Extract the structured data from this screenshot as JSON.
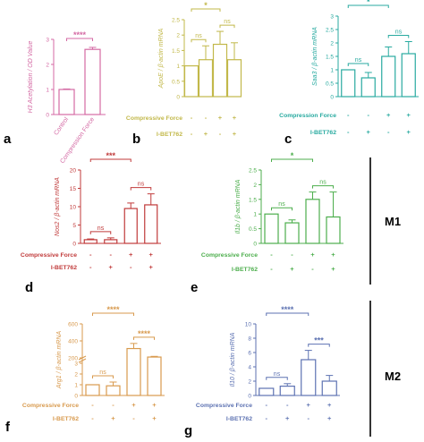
{
  "panel_letters": [
    "a",
    "b",
    "c",
    "d",
    "e",
    "f",
    "g"
  ],
  "group_labels": [
    "M1",
    "M2"
  ],
  "chart_data": [
    {
      "id": "a",
      "type": "bar",
      "color": "#d46aa4",
      "ylabel": "H3 Acetylation / OD Value",
      "categories": [
        "Control",
        "Compression Force"
      ],
      "values": [
        1.0,
        2.6
      ],
      "errors": [
        0.02,
        0.08
      ],
      "ylim": [
        0,
        3
      ],
      "yticks": [
        0,
        1,
        2,
        3
      ],
      "brackets": [
        {
          "from": 0,
          "to": 1,
          "label": "****"
        }
      ],
      "row_labels": [],
      "row_values": []
    },
    {
      "id": "b",
      "type": "bar",
      "color": "#c2b84a",
      "ylabel": "ApoE / β-actin mRNA",
      "categories": [
        "",
        "",
        "",
        ""
      ],
      "values": [
        1.0,
        1.2,
        1.7,
        1.2
      ],
      "errors": [
        0.0,
        0.45,
        0.42,
        0.55
      ],
      "ylim": [
        0,
        2.5
      ],
      "yticks": [
        0.0,
        0.5,
        1.0,
        1.5,
        2.0,
        2.5
      ],
      "brackets": [
        {
          "from": 0,
          "to": 1,
          "label": "ns"
        },
        {
          "from": 2,
          "to": 3,
          "label": "ns"
        },
        {
          "from": 0,
          "to": 2,
          "label": "*"
        }
      ],
      "row_labels": [
        "Compressive Force",
        "I-BET762"
      ],
      "row_values": [
        [
          "-",
          "-",
          "+",
          "+"
        ],
        [
          "-",
          "+",
          "-",
          "+"
        ]
      ]
    },
    {
      "id": "c",
      "type": "bar",
      "color": "#28aaa0",
      "ylabel": "Saa3 / β-actin mRNA",
      "categories": [
        "",
        "",
        "",
        ""
      ],
      "values": [
        1.0,
        0.7,
        1.5,
        1.6
      ],
      "errors": [
        0.0,
        0.2,
        0.35,
        0.45
      ],
      "ylim": [
        0,
        3
      ],
      "yticks": [
        0.0,
        0.5,
        1.0,
        1.5,
        2.0,
        2.5,
        3.0
      ],
      "brackets": [
        {
          "from": 0,
          "to": 1,
          "label": "ns"
        },
        {
          "from": 2,
          "to": 3,
          "label": "ns"
        },
        {
          "from": 0,
          "to": 2,
          "label": "*"
        }
      ],
      "row_labels": [
        "Compression Force",
        "I-BET762"
      ],
      "row_values": [
        [
          "-",
          "-",
          "+",
          "+"
        ],
        [
          "-",
          "+",
          "-",
          "+"
        ]
      ]
    },
    {
      "id": "d",
      "type": "bar",
      "color": "#c03a3a",
      "ylabel": "Nos2 / β-actin mRNA",
      "categories": [
        "",
        "",
        "",
        ""
      ],
      "values": [
        1.0,
        1.0,
        9.5,
        10.5
      ],
      "errors": [
        0.2,
        0.5,
        1.5,
        3.0
      ],
      "ylim": [
        0,
        20
      ],
      "yticks": [
        0,
        5,
        10,
        15,
        20
      ],
      "brackets": [
        {
          "from": 0,
          "to": 1,
          "label": "ns"
        },
        {
          "from": 2,
          "to": 3,
          "label": "ns"
        },
        {
          "from": 0,
          "to": 2,
          "label": "***"
        }
      ],
      "row_labels": [
        "Compressive Force",
        "I-BET762"
      ],
      "row_values": [
        [
          "-",
          "-",
          "+",
          "+"
        ],
        [
          "-",
          "+",
          "-",
          "+"
        ]
      ]
    },
    {
      "id": "e",
      "type": "bar",
      "color": "#4cae4c",
      "ylabel": "Il1b / β-actin mRNA",
      "categories": [
        "",
        "",
        "",
        ""
      ],
      "values": [
        1.0,
        0.7,
        1.5,
        0.9
      ],
      "errors": [
        0.0,
        0.1,
        0.25,
        0.85
      ],
      "ylim": [
        0,
        2.5
      ],
      "yticks": [
        0.0,
        0.5,
        1.0,
        1.5,
        2.0,
        2.5
      ],
      "brackets": [
        {
          "from": 0,
          "to": 1,
          "label": "ns"
        },
        {
          "from": 2,
          "to": 3,
          "label": "ns"
        },
        {
          "from": 0,
          "to": 2,
          "label": "*"
        }
      ],
      "row_labels": [
        "Compressive Force",
        "I-BET762"
      ],
      "row_values": [
        [
          "-",
          "-",
          "+",
          "+"
        ],
        [
          "-",
          "+",
          "-",
          "+"
        ]
      ]
    },
    {
      "id": "f",
      "type": "bar",
      "color": "#d89a4e",
      "ylabel": "Arg1 / β-actin mRNA",
      "categories": [
        "",
        "",
        "",
        ""
      ],
      "values": [
        1.0,
        0.9,
        310,
        210
      ],
      "errors": [
        0.0,
        0.35,
        60,
        8
      ],
      "ylim": [
        0,
        600
      ],
      "yticks": [
        0,
        1,
        2,
        3,
        200,
        400,
        600
      ],
      "broken_axis": {
        "lower_max": 3,
        "upper_min": 200
      },
      "brackets": [
        {
          "from": 0,
          "to": 1,
          "label": "ns"
        },
        {
          "from": 2,
          "to": 3,
          "label": "****"
        },
        {
          "from": 0,
          "to": 2,
          "label": "****"
        }
      ],
      "row_labels": [
        "Compressive Force",
        "I-BET762"
      ],
      "row_values": [
        [
          "-",
          "-",
          "+",
          "+"
        ],
        [
          "-",
          "+",
          "-",
          "+"
        ]
      ]
    },
    {
      "id": "g",
      "type": "bar",
      "color": "#5d72b2",
      "ylabel": "Il10 / β-actin mRNA",
      "categories": [
        "",
        "",
        "",
        ""
      ],
      "values": [
        1.0,
        1.3,
        5.0,
        2.0
      ],
      "errors": [
        0.0,
        0.35,
        1.3,
        0.8
      ],
      "ylim": [
        0,
        10
      ],
      "yticks": [
        0,
        2,
        4,
        6,
        8,
        10
      ],
      "brackets": [
        {
          "from": 0,
          "to": 1,
          "label": "ns"
        },
        {
          "from": 2,
          "to": 3,
          "label": "***"
        },
        {
          "from": 0,
          "to": 2,
          "label": "****"
        }
      ],
      "row_labels": [
        "Compressive Force",
        "I-BET762"
      ],
      "row_values": [
        [
          "-",
          "-",
          "+",
          "+"
        ],
        [
          "-",
          "+",
          "-",
          "+"
        ]
      ]
    }
  ]
}
